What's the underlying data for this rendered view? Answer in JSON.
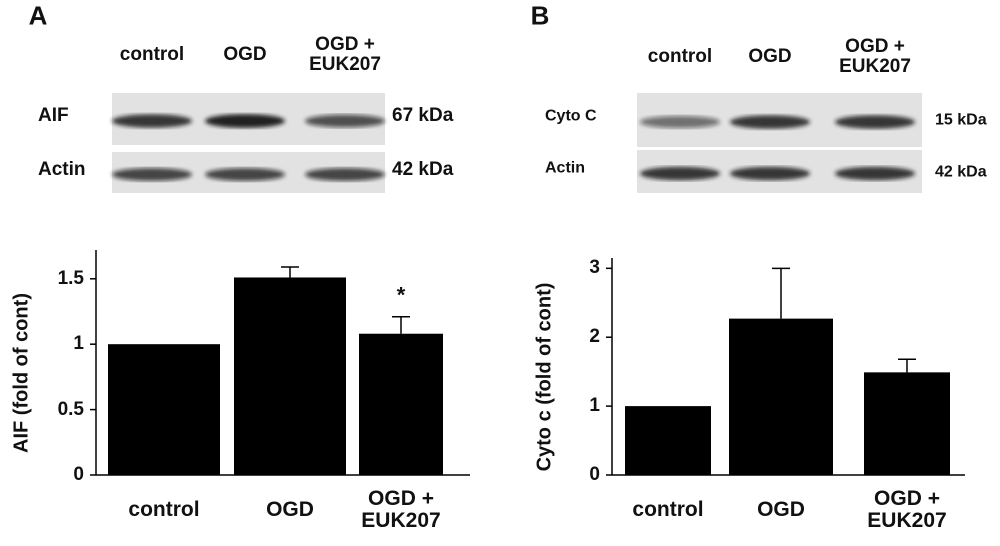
{
  "chart_data": [
    {
      "type": "bar",
      "panel": "A",
      "blot": {
        "lanes": [
          "control",
          "OGD",
          "OGD + EUK207"
        ],
        "rows": [
          {
            "label": "AIF",
            "size": "67 kDa"
          },
          {
            "label": "Actin",
            "size": "42 kDa"
          }
        ]
      },
      "categories": [
        "control",
        "OGD",
        "OGD + EUK207"
      ],
      "values": [
        1.0,
        1.51,
        1.08
      ],
      "errors": [
        null,
        0.08,
        0.13
      ],
      "significance": [
        null,
        null,
        "*"
      ],
      "ylabel": "AIF (fold of cont)",
      "ylim": [
        0,
        1.72
      ],
      "yticks": [
        0,
        0.5,
        1,
        1.5
      ],
      "color": "#000000"
    },
    {
      "type": "bar",
      "panel": "B",
      "blot": {
        "lanes": [
          "control",
          "OGD",
          "OGD + EUK207"
        ],
        "rows": [
          {
            "label": "Cyto C",
            "size": "15 kDa"
          },
          {
            "label": "Actin",
            "size": "42 kDa"
          }
        ]
      },
      "categories": [
        "control",
        "OGD",
        "OGD + EUK207"
      ],
      "values": [
        1.0,
        2.27,
        1.49
      ],
      "errors": [
        null,
        0.73,
        0.19
      ],
      "significance": [
        null,
        null,
        null
      ],
      "ylabel": "Cyto c (fold of cont)",
      "ylim": [
        0,
        3.15
      ],
      "yticks": [
        0,
        1,
        2,
        3
      ],
      "color": "#000000"
    }
  ]
}
